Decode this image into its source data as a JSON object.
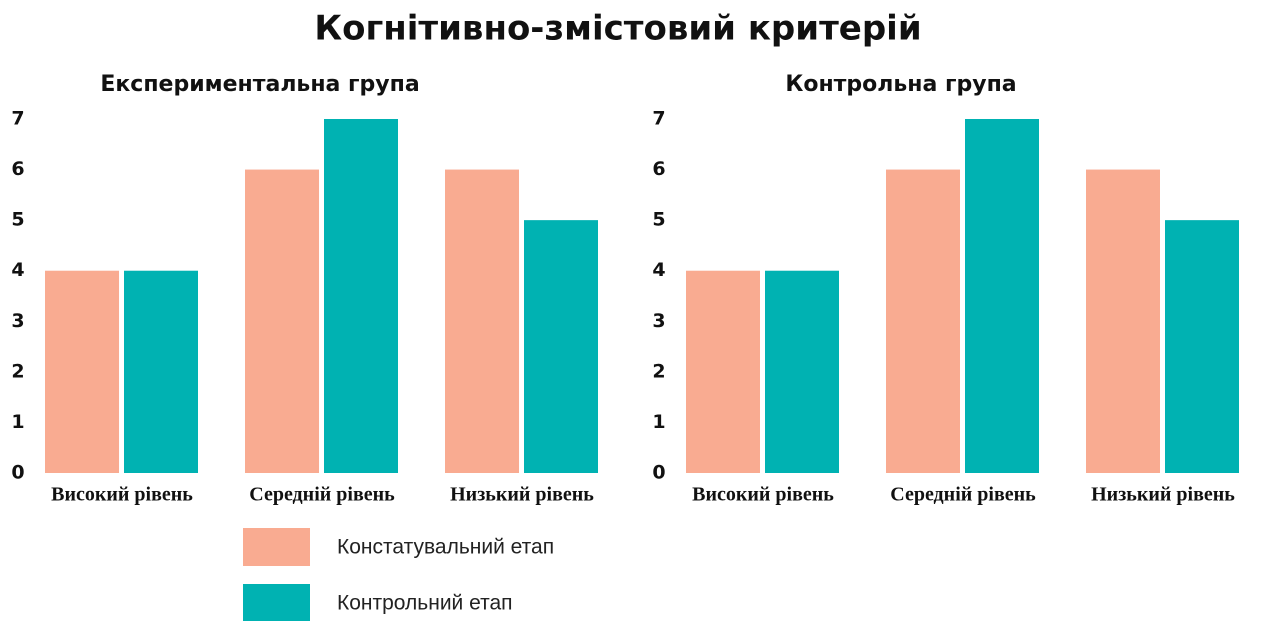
{
  "title": "Когнітивно-змістовий критерій",
  "chart_data": [
    {
      "type": "bar",
      "title": "Експериментальна група",
      "categories": [
        "Високий рівень",
        "Середній рівень",
        "Низький рівень"
      ],
      "series": [
        {
          "name": "Констатувальний етап",
          "color": "#f9ab91",
          "values": [
            4,
            6,
            6
          ]
        },
        {
          "name": "Контрольний етап",
          "color": "#00b2b2",
          "values": [
            4,
            7,
            5
          ]
        }
      ],
      "ylim": [
        0,
        7
      ],
      "yticks": [
        0,
        1,
        2,
        3,
        4,
        5,
        6,
        7
      ],
      "grid": false
    },
    {
      "type": "bar",
      "title": "Контрольна група",
      "categories": [
        "Високий рівень",
        "Середній рівень",
        "Низький рівень"
      ],
      "series": [
        {
          "color": "#f9ab91",
          "values": [
            4,
            6,
            6
          ]
        },
        {
          "color": "#00b2b2",
          "values": [
            4,
            7,
            5
          ]
        }
      ],
      "ylim": [
        0,
        7
      ],
      "yticks": [
        0,
        1,
        2,
        3,
        4,
        5,
        6,
        7
      ],
      "grid": false
    }
  ]
}
